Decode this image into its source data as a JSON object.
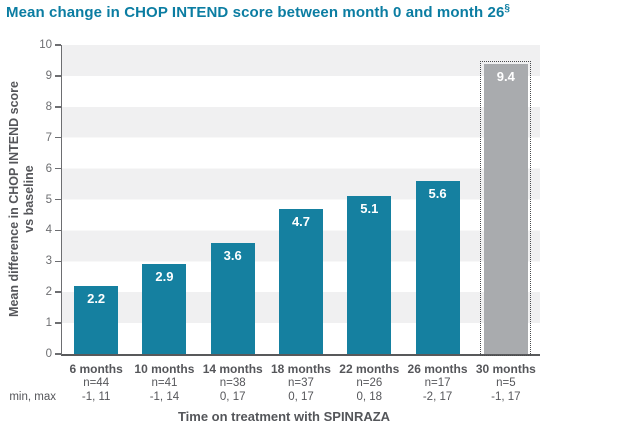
{
  "title": {
    "text": "Mean change in CHOP INTEND score between month 0 and month 26",
    "marker": "§"
  },
  "colors": {
    "title_teal": "#0B7DA2",
    "bar_teal": "#1580A0",
    "bar_gray": "#A9ABAE",
    "stripe_gray": "#F0F0F1",
    "axis_gray": "#6D6E71",
    "text_gray": "#55565A",
    "value_label_white": "#FFFFFF",
    "dotted_border": "#4A4B4D"
  },
  "chart_data": {
    "type": "bar",
    "title": "Mean change in CHOP INTEND score between month 0 and month 26§",
    "xlabel": "Time on treatment with SPINRAZA",
    "ylabel_lines": [
      "Mean difference in CHOP INTEND score",
      "vs baseline"
    ],
    "ylim": [
      0,
      10
    ],
    "ytick_step": 1,
    "grid": "horizontal gray bands on odd-to-even unit intervals",
    "legend": "none",
    "row_header_min_max": "min, max",
    "categories": [
      "6 months",
      "10 months",
      "14 months",
      "18 months",
      "22 months",
      "26 months",
      "30 months"
    ],
    "values": [
      2.2,
      2.9,
      3.6,
      4.7,
      5.1,
      5.6,
      9.4
    ],
    "bars": [
      {
        "label": "6 months",
        "n": "n=44",
        "min_max": "-1, 11",
        "value": 2.2,
        "style": "solid-teal"
      },
      {
        "label": "10 months",
        "n": "n=41",
        "min_max": "-1, 14",
        "value": 2.9,
        "style": "solid-teal"
      },
      {
        "label": "14 months",
        "n": "n=38",
        "min_max": "0, 17",
        "value": 3.6,
        "style": "solid-teal"
      },
      {
        "label": "18 months",
        "n": "n=37",
        "min_max": "0, 17",
        "value": 4.7,
        "style": "solid-teal"
      },
      {
        "label": "22 months",
        "n": "n=26",
        "min_max": "0, 18",
        "value": 5.1,
        "style": "solid-teal"
      },
      {
        "label": "26 months",
        "n": "n=17",
        "min_max": "-2, 17",
        "value": 5.6,
        "style": "solid-teal"
      },
      {
        "label": "30 months",
        "n": "n=5",
        "min_max": "-1, 17",
        "value": 9.4,
        "style": "dotted-gray"
      }
    ]
  }
}
